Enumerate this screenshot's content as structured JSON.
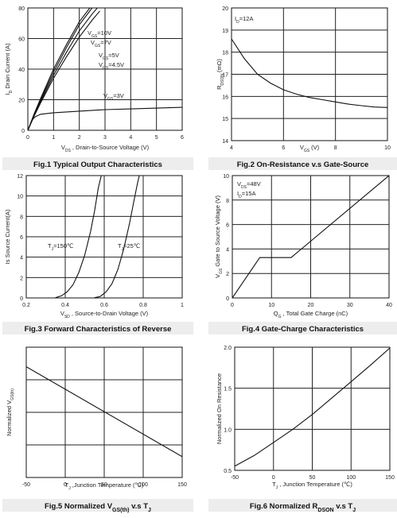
{
  "chart_data": [
    {
      "id": "fig1",
      "type": "line",
      "caption": "Fig.1 Typical Output Characteristics",
      "xlabel": "V_DS , Drain-to-Source Voltage (V)",
      "ylabel": "I_D Drain Current (A)",
      "xlim": [
        0,
        6
      ],
      "ylim": [
        0,
        80
      ],
      "xticks": [
        "0",
        "1",
        "2",
        "3",
        "4",
        "5",
        "6"
      ],
      "yticks": [
        "0",
        "20",
        "40",
        "60",
        "80"
      ],
      "grid": true,
      "series": [
        {
          "name": "V_GS=10V",
          "x": [
            0,
            0.25,
            0.5,
            1.0,
            1.5,
            2.0,
            2.5
          ],
          "y": [
            0,
            11,
            21,
            40,
            56,
            71,
            82
          ]
        },
        {
          "name": "V_GS=7V",
          "x": [
            0,
            0.25,
            0.5,
            1.0,
            1.5,
            2.0,
            2.5
          ],
          "y": [
            0,
            10.5,
            20,
            38,
            54,
            69,
            80
          ]
        },
        {
          "name": "V_GS=5V",
          "x": [
            0,
            0.25,
            0.5,
            1.0,
            1.5,
            2.0,
            2.5,
            2.8
          ],
          "y": [
            0,
            10,
            19,
            36,
            51,
            65,
            76,
            82
          ]
        },
        {
          "name": "V_GS=4.5V",
          "x": [
            0,
            0.25,
            0.5,
            1.0,
            1.5,
            2.0,
            2.5,
            2.8
          ],
          "y": [
            0,
            9.5,
            18,
            34,
            48,
            61,
            72,
            78
          ]
        },
        {
          "name": "V_GS=3V",
          "x": [
            0,
            0.1,
            0.2,
            0.3,
            0.5,
            1.0,
            2.0,
            3.0,
            4.0,
            5.0,
            6.0
          ],
          "y": [
            0,
            4,
            7.5,
            9,
            10.5,
            11.5,
            12.5,
            13.5,
            14,
            14.5,
            15
          ]
        }
      ]
    },
    {
      "id": "fig2",
      "type": "line",
      "caption": "Fig.2 On-Resistance v.s Gate-Source",
      "annotation": "I_D=12A",
      "xlabel": "V_GS (V)",
      "ylabel": "R_DSON (mΩ)",
      "xlim": [
        4,
        10
      ],
      "ylim": [
        14,
        20
      ],
      "xticks": [
        "4",
        "6",
        "8",
        "10"
      ],
      "yticks": [
        "14",
        "15",
        "16",
        "17",
        "18",
        "19",
        "20"
      ],
      "grid": true,
      "series": [
        {
          "name": "",
          "x": [
            4,
            4.5,
            5,
            5.5,
            6,
            6.5,
            7,
            7.5,
            8,
            8.5,
            9,
            9.5,
            10
          ],
          "y": [
            18.6,
            17.7,
            17.0,
            16.6,
            16.3,
            16.1,
            15.95,
            15.85,
            15.75,
            15.65,
            15.58,
            15.52,
            15.5
          ]
        }
      ]
    },
    {
      "id": "fig3",
      "type": "line",
      "caption": "Fig.3 Forward Characteristics of Reverse",
      "xlabel": "V_SD , Source-to-Drain Voltage (V)",
      "ylabel": "Is Source Current(A)",
      "xlim": [
        0.2,
        1.0
      ],
      "ylim": [
        0,
        12
      ],
      "xticks": [
        "0.2",
        "0.4",
        "0.6",
        "0.8",
        "1"
      ],
      "yticks": [
        "0",
        "2",
        "4",
        "6",
        "8",
        "10",
        "12"
      ],
      "grid": true,
      "series": [
        {
          "name": "T_J=150℃",
          "x": [
            0.35,
            0.38,
            0.41,
            0.44,
            0.47,
            0.5,
            0.53,
            0.55,
            0.57,
            0.585
          ],
          "y": [
            0.02,
            0.2,
            0.6,
            1.3,
            2.5,
            4.2,
            6.5,
            8.5,
            10.8,
            12
          ]
        },
        {
          "name": "T_J=25℃",
          "x": [
            0.55,
            0.58,
            0.61,
            0.64,
            0.67,
            0.7,
            0.73,
            0.75,
            0.77,
            0.78
          ],
          "y": [
            0.02,
            0.15,
            0.6,
            1.4,
            2.8,
            4.8,
            7.3,
            9.3,
            11.2,
            12
          ]
        }
      ]
    },
    {
      "id": "fig4",
      "type": "line",
      "caption": "Fig.4 Gate-Charge Characteristics",
      "annotation": [
        "V_DS=48V",
        "I_D=15A"
      ],
      "xlabel": "Q_G , Total Gate Charge (nC)",
      "ylabel": "V_GS  Gate to Source Voltage (V)",
      "xlim": [
        0,
        40
      ],
      "ylim": [
        0,
        10
      ],
      "xticks": [
        "0",
        "10",
        "20",
        "30",
        "40"
      ],
      "yticks": [
        "0",
        "2",
        "4",
        "6",
        "8",
        "10"
      ],
      "grid": true,
      "series": [
        {
          "name": "",
          "x": [
            0,
            7,
            15,
            40
          ],
          "y": [
            0,
            3.3,
            3.3,
            10
          ]
        }
      ]
    },
    {
      "id": "fig5",
      "type": "line",
      "caption": "Fig.5 Normalized V_GS(th) v.s T_J",
      "xlabel": "T_J ,Junction Temperature (℃)",
      "ylabel": "Normalized V_GS(th)",
      "xlim": [
        -50,
        150
      ],
      "ylim": [
        0.4,
        1.4
      ],
      "xticks": [
        "-50",
        "0",
        "50",
        "100",
        "150"
      ],
      "yticks": [],
      "grid": true,
      "series": [
        {
          "name": "",
          "x": [
            -50,
            150
          ],
          "y": [
            1.25,
            0.56
          ]
        }
      ]
    },
    {
      "id": "fig6",
      "type": "line",
      "caption": "Fig.6 Normalized R_DSON v.s T_J",
      "xlabel": "T_J , Junction Temperature (℃)",
      "ylabel": "Normalized On Resistance",
      "xlim": [
        -50,
        150
      ],
      "ylim": [
        0.5,
        2.0
      ],
      "xticks": [
        "-50",
        "0",
        "50",
        "100",
        "150"
      ],
      "yticks": [
        "0.5",
        "1.0",
        "1.5",
        "2.0"
      ],
      "grid": true,
      "series": [
        {
          "name": "",
          "x": [
            -50,
            -25,
            0,
            25,
            50,
            75,
            100,
            125,
            150
          ],
          "y": [
            0.55,
            0.68,
            0.84,
            1.0,
            1.18,
            1.38,
            1.58,
            1.78,
            1.99
          ]
        }
      ]
    }
  ]
}
